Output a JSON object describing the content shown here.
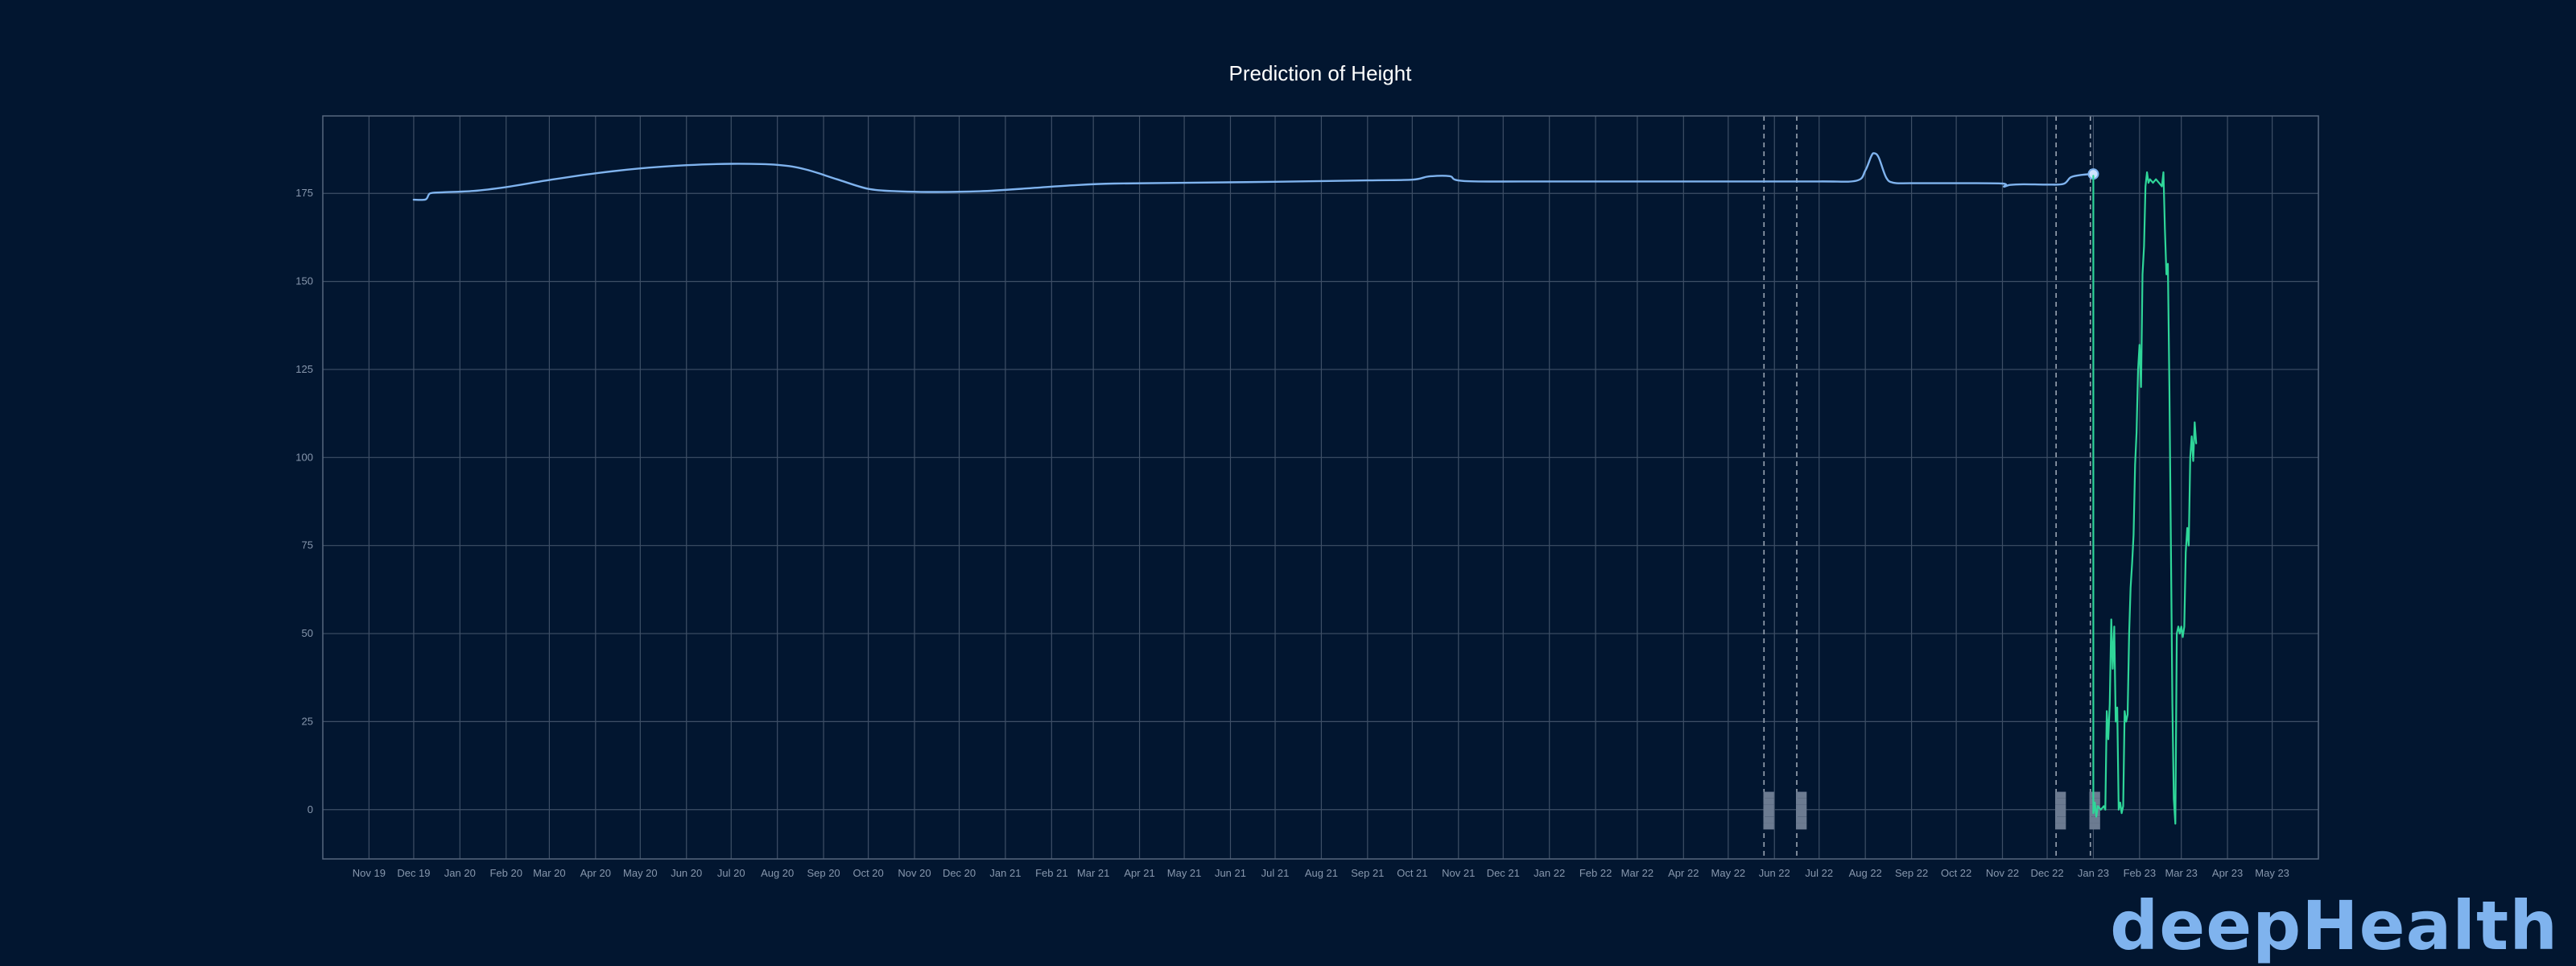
{
  "brand": {
    "logo_text": "deepHealth",
    "logo_color": "#7fb3ee"
  },
  "colors": {
    "background": "#021630",
    "grid": "#3e4f66",
    "frame": "#56677e",
    "prediction_line": "#7fb3ee",
    "measured_line": "#2fd699",
    "marker_line": "#9aa5b3",
    "title": "#ffffff",
    "tick_text": "#8797ad"
  },
  "chart_data": {
    "type": "line",
    "title": "Prediction of Height",
    "xlabel": "",
    "ylabel": "",
    "x_type": "date",
    "xlim": [
      "2019-10-01",
      "2023-06-01"
    ],
    "ylim": [
      -14,
      197
    ],
    "yticks": [
      0,
      25,
      50,
      75,
      100,
      125,
      150,
      175
    ],
    "xticks": [
      {
        "date": "2019-11-01",
        "label": "Nov 19"
      },
      {
        "date": "2019-12-01",
        "label": "Dec 19"
      },
      {
        "date": "2020-01-01",
        "label": "Jan 20"
      },
      {
        "date": "2020-02-01",
        "label": "Feb 20"
      },
      {
        "date": "2020-03-01",
        "label": "Mar 20"
      },
      {
        "date": "2020-04-01",
        "label": "Apr 20"
      },
      {
        "date": "2020-05-01",
        "label": "May 20"
      },
      {
        "date": "2020-06-01",
        "label": "Jun 20"
      },
      {
        "date": "2020-07-01",
        "label": "Jul 20"
      },
      {
        "date": "2020-08-01",
        "label": "Aug 20"
      },
      {
        "date": "2020-09-01",
        "label": "Sep 20"
      },
      {
        "date": "2020-10-01",
        "label": "Oct 20"
      },
      {
        "date": "2020-11-01",
        "label": "Nov 20"
      },
      {
        "date": "2020-12-01",
        "label": "Dec 20"
      },
      {
        "date": "2021-01-01",
        "label": "Jan 21"
      },
      {
        "date": "2021-02-01",
        "label": "Feb 21"
      },
      {
        "date": "2021-03-01",
        "label": "Mar 21"
      },
      {
        "date": "2021-04-01",
        "label": "Apr 21"
      },
      {
        "date": "2021-05-01",
        "label": "May 21"
      },
      {
        "date": "2021-06-01",
        "label": "Jun 21"
      },
      {
        "date": "2021-07-01",
        "label": "Jul 21"
      },
      {
        "date": "2021-08-01",
        "label": "Aug 21"
      },
      {
        "date": "2021-09-01",
        "label": "Sep 21"
      },
      {
        "date": "2021-10-01",
        "label": "Oct 21"
      },
      {
        "date": "2021-11-01",
        "label": "Nov 21"
      },
      {
        "date": "2021-12-01",
        "label": "Dec 21"
      },
      {
        "date": "2022-01-01",
        "label": "Jan 22"
      },
      {
        "date": "2022-02-01",
        "label": "Feb 22"
      },
      {
        "date": "2022-03-01",
        "label": "Mar 22"
      },
      {
        "date": "2022-04-01",
        "label": "Apr 22"
      },
      {
        "date": "2022-05-01",
        "label": "May 22"
      },
      {
        "date": "2022-06-01",
        "label": "Jun 22"
      },
      {
        "date": "2022-07-01",
        "label": "Jul 22"
      },
      {
        "date": "2022-08-01",
        "label": "Aug 22"
      },
      {
        "date": "2022-09-01",
        "label": "Sep 22"
      },
      {
        "date": "2022-10-01",
        "label": "Oct 22"
      },
      {
        "date": "2022-11-01",
        "label": "Nov 22"
      },
      {
        "date": "2022-12-01",
        "label": "Dec 22"
      },
      {
        "date": "2023-01-01",
        "label": "Jan 23"
      },
      {
        "date": "2023-02-01",
        "label": "Feb 23"
      },
      {
        "date": "2023-03-01",
        "label": "Mar 23"
      },
      {
        "date": "2023-04-01",
        "label": "Apr 23"
      },
      {
        "date": "2023-05-01",
        "label": "May 23"
      }
    ],
    "grid": true,
    "legend": "none",
    "markers": [
      {
        "date": "2022-05-25",
        "label": "██████"
      },
      {
        "date": "2022-06-16",
        "label": "██████"
      },
      {
        "date": "2022-12-07",
        "label": "██████"
      },
      {
        "date": "2022-12-30",
        "label": "██████"
      }
    ],
    "series": [
      {
        "style": "smooth",
        "color": "#7fb3ee",
        "end_marker": true,
        "points": [
          [
            "2019-12-01",
            173.2
          ],
          [
            "2019-12-09",
            173.3
          ],
          [
            "2019-12-12",
            175.0
          ],
          [
            "2019-12-20",
            175.3
          ],
          [
            "2020-01-10",
            175.7
          ],
          [
            "2020-02-01",
            176.8
          ],
          [
            "2020-03-01",
            178.8
          ],
          [
            "2020-04-01",
            180.7
          ],
          [
            "2020-05-01",
            182.1
          ],
          [
            "2020-06-01",
            183.0
          ],
          [
            "2020-07-01",
            183.4
          ],
          [
            "2020-08-01",
            183.1
          ],
          [
            "2020-08-20",
            181.8
          ],
          [
            "2020-09-10",
            179.0
          ],
          [
            "2020-10-01",
            176.3
          ],
          [
            "2020-10-20",
            175.6
          ],
          [
            "2020-11-15",
            175.4
          ],
          [
            "2020-12-15",
            175.6
          ],
          [
            "2021-01-15",
            176.4
          ],
          [
            "2021-02-15",
            177.3
          ],
          [
            "2021-03-15",
            177.8
          ],
          [
            "2021-05-01",
            178.0
          ],
          [
            "2021-07-01",
            178.3
          ],
          [
            "2021-09-01",
            178.7
          ],
          [
            "2021-10-01",
            178.9
          ],
          [
            "2021-10-12",
            179.8
          ],
          [
            "2021-10-26",
            179.9
          ],
          [
            "2021-11-05",
            178.5
          ],
          [
            "2022-01-01",
            178.4
          ],
          [
            "2022-03-01",
            178.4
          ],
          [
            "2022-05-01",
            178.4
          ],
          [
            "2022-07-01",
            178.4
          ],
          [
            "2022-07-26",
            178.6
          ],
          [
            "2022-08-01",
            181.5
          ],
          [
            "2022-08-05",
            185.6
          ],
          [
            "2022-08-07",
            186.4
          ],
          [
            "2022-08-10",
            185.2
          ],
          [
            "2022-08-15",
            179.5
          ],
          [
            "2022-08-20",
            178.0
          ],
          [
            "2022-09-01",
            177.9
          ],
          [
            "2022-10-01",
            177.9
          ],
          [
            "2022-11-01",
            177.8
          ],
          [
            "2022-11-02",
            176.9
          ],
          [
            "2022-11-06",
            177.4
          ],
          [
            "2022-11-15",
            177.6
          ],
          [
            "2022-12-01",
            177.5
          ],
          [
            "2022-12-12",
            177.7
          ],
          [
            "2022-12-17",
            179.6
          ],
          [
            "2022-12-25",
            180.3
          ],
          [
            "2023-01-01",
            180.5
          ]
        ]
      },
      {
        "style": "linear",
        "color": "#2fd699",
        "end_marker": false,
        "points": [
          [
            "2023-01-01",
            180.0
          ],
          [
            "2023-01-01",
            -1
          ],
          [
            "2023-01-02",
            2
          ],
          [
            "2023-01-03",
            -2
          ],
          [
            "2023-01-04",
            1
          ],
          [
            "2023-01-06",
            0
          ],
          [
            "2023-01-08",
            1
          ],
          [
            "2023-01-09",
            0
          ],
          [
            "2023-01-10",
            28
          ],
          [
            "2023-01-11",
            20
          ],
          [
            "2023-01-12",
            30
          ],
          [
            "2023-01-13",
            54
          ],
          [
            "2023-01-14",
            40
          ],
          [
            "2023-01-15",
            52
          ],
          [
            "2023-01-16",
            25
          ],
          [
            "2023-01-17",
            29
          ],
          [
            "2023-01-18",
            0
          ],
          [
            "2023-01-19",
            2
          ],
          [
            "2023-01-20",
            -1
          ],
          [
            "2023-01-21",
            1
          ],
          [
            "2023-01-22",
            28
          ],
          [
            "2023-01-23",
            25
          ],
          [
            "2023-01-24",
            27
          ],
          [
            "2023-01-25",
            50
          ],
          [
            "2023-01-26",
            63
          ],
          [
            "2023-01-27",
            70
          ],
          [
            "2023-01-28",
            78
          ],
          [
            "2023-01-29",
            98
          ],
          [
            "2023-01-30",
            107
          ],
          [
            "2023-01-31",
            125
          ],
          [
            "2023-02-01",
            132
          ],
          [
            "2023-02-02",
            120
          ],
          [
            "2023-02-03",
            152
          ],
          [
            "2023-02-04",
            160
          ],
          [
            "2023-02-05",
            177
          ],
          [
            "2023-02-06",
            181
          ],
          [
            "2023-02-07",
            178
          ],
          [
            "2023-02-08",
            179
          ],
          [
            "2023-02-10",
            178
          ],
          [
            "2023-02-12",
            179
          ],
          [
            "2023-02-14",
            178
          ],
          [
            "2023-02-16",
            177
          ],
          [
            "2023-02-17",
            181
          ],
          [
            "2023-02-18",
            165
          ],
          [
            "2023-02-19",
            152
          ],
          [
            "2023-02-20",
            155
          ],
          [
            "2023-02-21",
            120
          ],
          [
            "2023-02-22",
            77
          ],
          [
            "2023-02-23",
            30
          ],
          [
            "2023-02-24",
            3
          ],
          [
            "2023-02-25",
            -4
          ],
          [
            "2023-02-26",
            50
          ],
          [
            "2023-02-27",
            52
          ],
          [
            "2023-02-28",
            50
          ],
          [
            "2023-03-01",
            52
          ],
          [
            "2023-03-02",
            49
          ],
          [
            "2023-03-03",
            52
          ],
          [
            "2023-03-04",
            73
          ],
          [
            "2023-03-05",
            80
          ],
          [
            "2023-03-06",
            75
          ],
          [
            "2023-03-07",
            100
          ],
          [
            "2023-03-08",
            106
          ],
          [
            "2023-03-09",
            99
          ],
          [
            "2023-03-10",
            110
          ],
          [
            "2023-03-11",
            104
          ]
        ]
      }
    ]
  }
}
